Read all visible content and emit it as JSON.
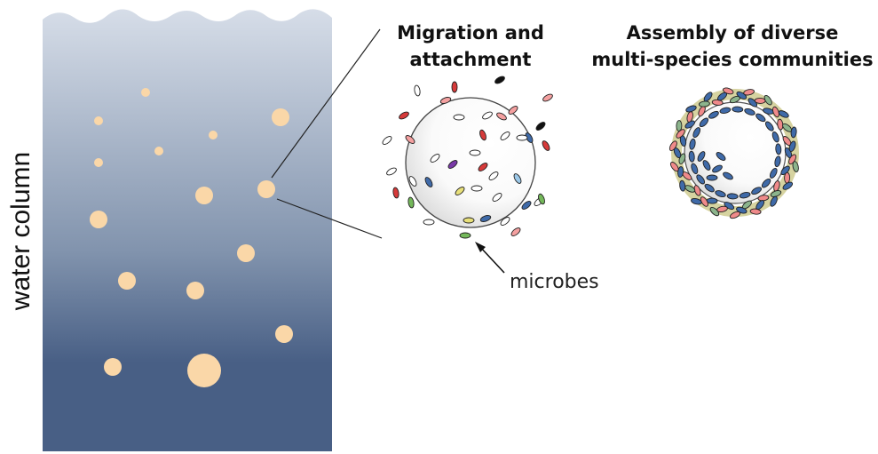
{
  "colors": {
    "water_top": "#d6dde8",
    "water_bottom": "#485f85",
    "particle": "#fad7a8",
    "biofilm": "#d6d3a0",
    "microbe_blue": "#3f6aa8",
    "microbe_pink": "#ef8a8a",
    "microbe_green": "#8cb48c",
    "microbe_red": "#d63a3a"
  },
  "labels": {
    "migration": [
      "Migration and",
      "attachment"
    ],
    "assembly": [
      "Assembly of diverse",
      "multi-species communities"
    ],
    "microbes": "microbes",
    "water_column": "water column"
  }
}
